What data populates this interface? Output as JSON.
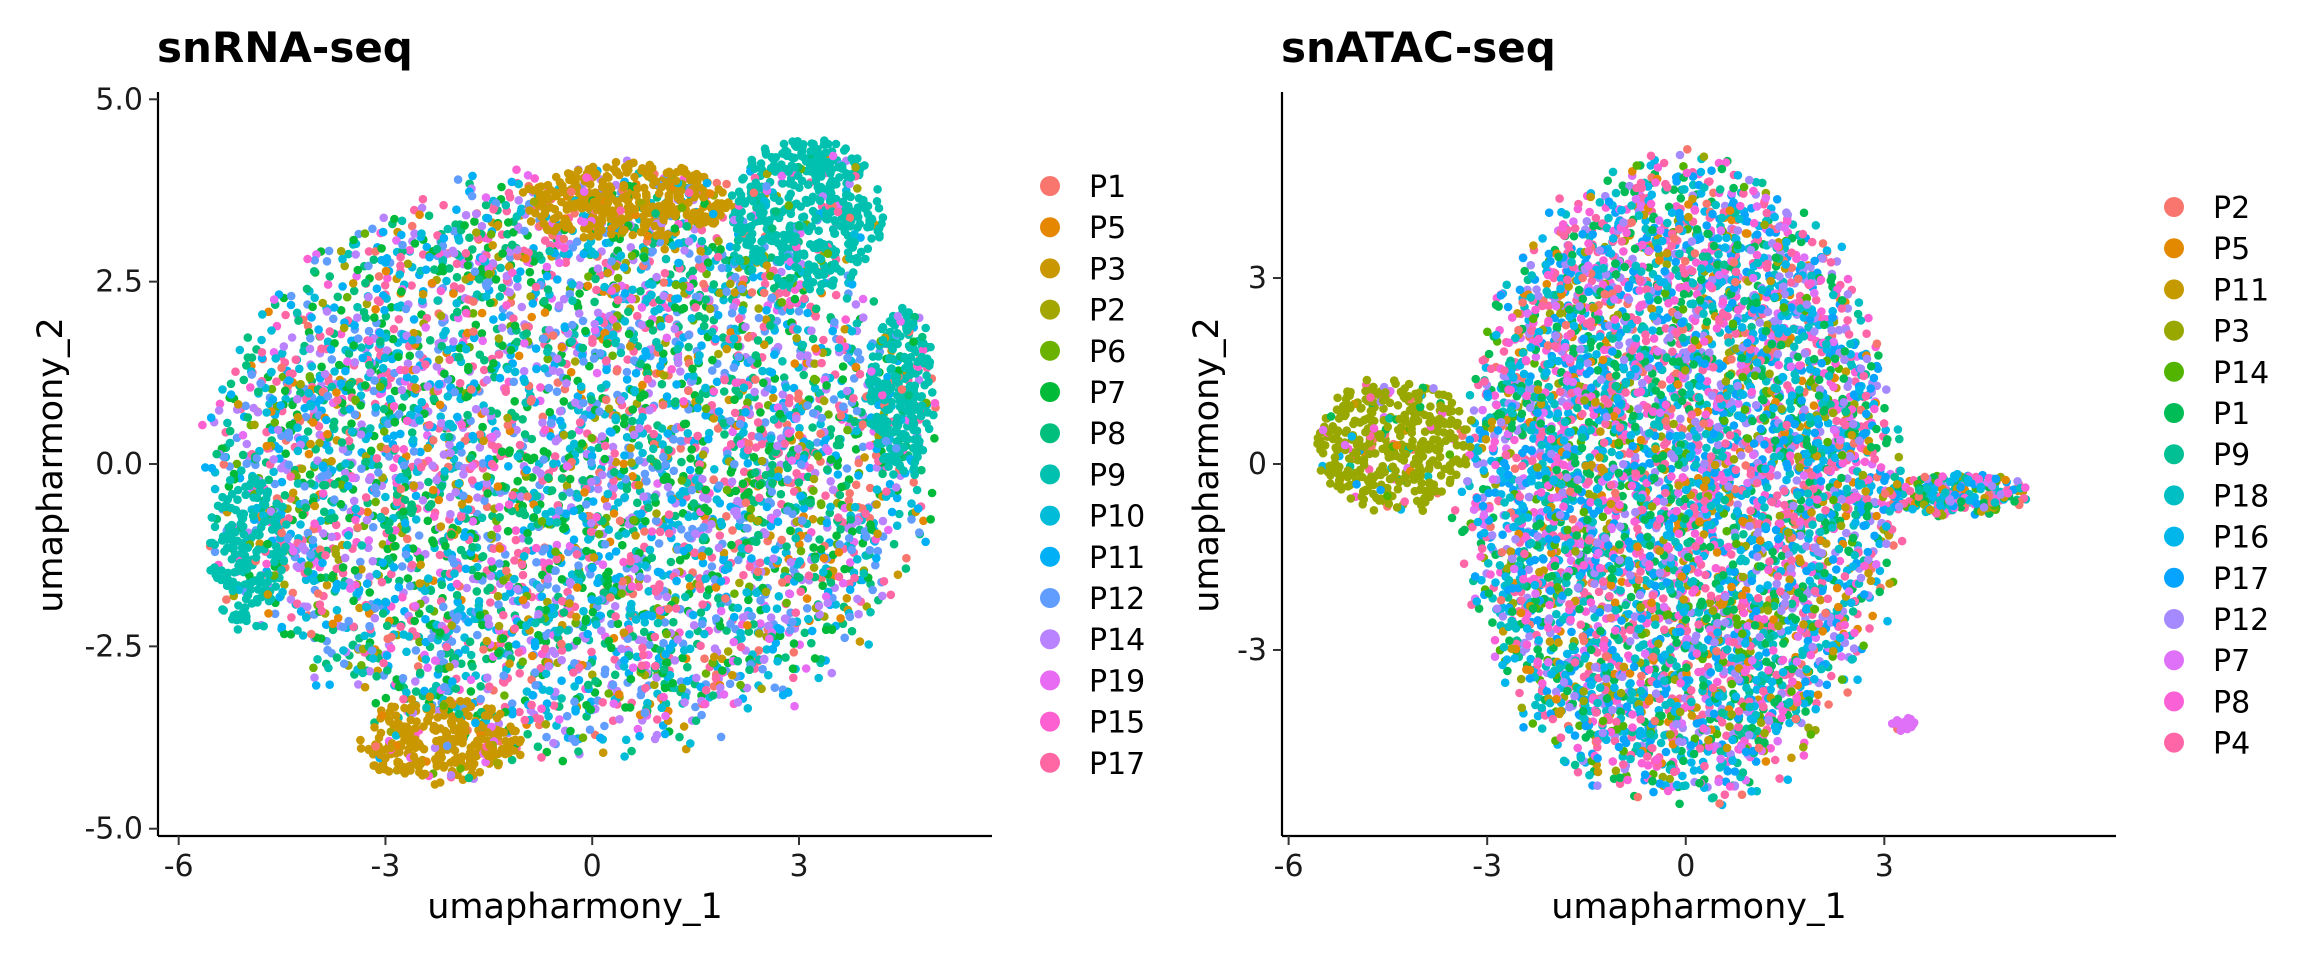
{
  "chart_data": [
    {
      "type": "scatter",
      "title": "snRNA-seq",
      "xlabel": "umapharmony_1",
      "ylabel": "umapharmony_2",
      "xlim": [
        -6.3,
        5.8
      ],
      "ylim": [
        -5.1,
        5.1
      ],
      "x_ticks": [
        -6,
        -3,
        0,
        3
      ],
      "x_tick_labels": [
        "-6",
        "-3",
        "0",
        "3"
      ],
      "y_ticks": [
        -5,
        -2.5,
        0,
        2.5,
        5
      ],
      "y_tick_labels": [
        "-5.0",
        "-2.5",
        "0.0",
        "2.5",
        "5.0"
      ],
      "legend_position": "right",
      "grid": false,
      "series": [
        {
          "name": "P1",
          "color": "#F8766D"
        },
        {
          "name": "P5",
          "color": "#E58700"
        },
        {
          "name": "P3",
          "color": "#C99800"
        },
        {
          "name": "P2",
          "color": "#A3A500"
        },
        {
          "name": "P6",
          "color": "#6BB100"
        },
        {
          "name": "P7",
          "color": "#00BA38"
        },
        {
          "name": "P8",
          "color": "#00BF7D"
        },
        {
          "name": "P9",
          "color": "#00C0AF"
        },
        {
          "name": "P10",
          "color": "#00BCD8"
        },
        {
          "name": "P11",
          "color": "#00B0F6"
        },
        {
          "name": "P12",
          "color": "#619CFF"
        },
        {
          "name": "P14",
          "color": "#B983FF"
        },
        {
          "name": "P19",
          "color": "#E76BF3"
        },
        {
          "name": "P15",
          "color": "#FD61D1"
        },
        {
          "name": "P17",
          "color": "#FF67A4"
        }
      ],
      "clusters": [
        {
          "cx": -0.3,
          "cy": 0.0,
          "rx": 5.2,
          "ry": 4.0,
          "n": 5200,
          "series": "mix"
        },
        {
          "cx": 0.5,
          "cy": 3.6,
          "rx": 1.6,
          "ry": 0.55,
          "n": 420,
          "series": "P3"
        },
        {
          "cx": 3.1,
          "cy": 3.4,
          "rx": 1.1,
          "ry": 1.1,
          "n": 500,
          "series": "P9"
        },
        {
          "cx": 4.5,
          "cy": 1.0,
          "rx": 0.5,
          "ry": 1.2,
          "n": 260,
          "series": "P9"
        },
        {
          "cx": -2.2,
          "cy": -3.8,
          "rx": 1.2,
          "ry": 0.6,
          "n": 300,
          "series": "P3"
        },
        {
          "cx": -5.0,
          "cy": -1.2,
          "rx": 0.6,
          "ry": 1.1,
          "n": 200,
          "series": "P9"
        }
      ]
    },
    {
      "type": "scatter",
      "title": "snATAC-seq",
      "xlabel": "umapharmony_1",
      "ylabel": "umapharmony_2",
      "xlim": [
        -6.1,
        6.5
      ],
      "ylim": [
        -6.0,
        6.0
      ],
      "x_ticks": [
        -6,
        -3,
        0,
        3
      ],
      "x_tick_labels": [
        "-6",
        "-3",
        "0",
        "3"
      ],
      "y_ticks": [
        -3,
        0,
        3
      ],
      "y_tick_labels": [
        "-3",
        "0",
        "3"
      ],
      "legend_position": "right",
      "grid": false,
      "series": [
        {
          "name": "P2",
          "color": "#F8766D"
        },
        {
          "name": "P5",
          "color": "#E38900"
        },
        {
          "name": "P11",
          "color": "#C49A00"
        },
        {
          "name": "P3",
          "color": "#99A800"
        },
        {
          "name": "P14",
          "color": "#53B400"
        },
        {
          "name": "P1",
          "color": "#00BC56"
        },
        {
          "name": "P9",
          "color": "#00C094"
        },
        {
          "name": "P18",
          "color": "#00BFC4"
        },
        {
          "name": "P16",
          "color": "#00B6EB"
        },
        {
          "name": "P17",
          "color": "#06A4FF"
        },
        {
          "name": "P12",
          "color": "#A58AFF"
        },
        {
          "name": "P7",
          "color": "#DF70F8"
        },
        {
          "name": "P8",
          "color": "#FB61D7"
        },
        {
          "name": "P4",
          "color": "#FF66A8"
        }
      ],
      "clusters": [
        {
          "cx": -0.1,
          "cy": -0.3,
          "rx": 3.3,
          "ry": 5.2,
          "n": 5600,
          "series": "mix"
        },
        {
          "cx": -4.4,
          "cy": 0.3,
          "rx": 1.2,
          "ry": 1.1,
          "n": 420,
          "series": "P3"
        },
        {
          "cx": 4.1,
          "cy": -0.5,
          "rx": 1.2,
          "ry": 0.35,
          "n": 240,
          "series": "mix"
        },
        {
          "cx": 3.3,
          "cy": -4.2,
          "rx": 0.2,
          "ry": 0.12,
          "n": 30,
          "series": "P7"
        }
      ]
    }
  ]
}
